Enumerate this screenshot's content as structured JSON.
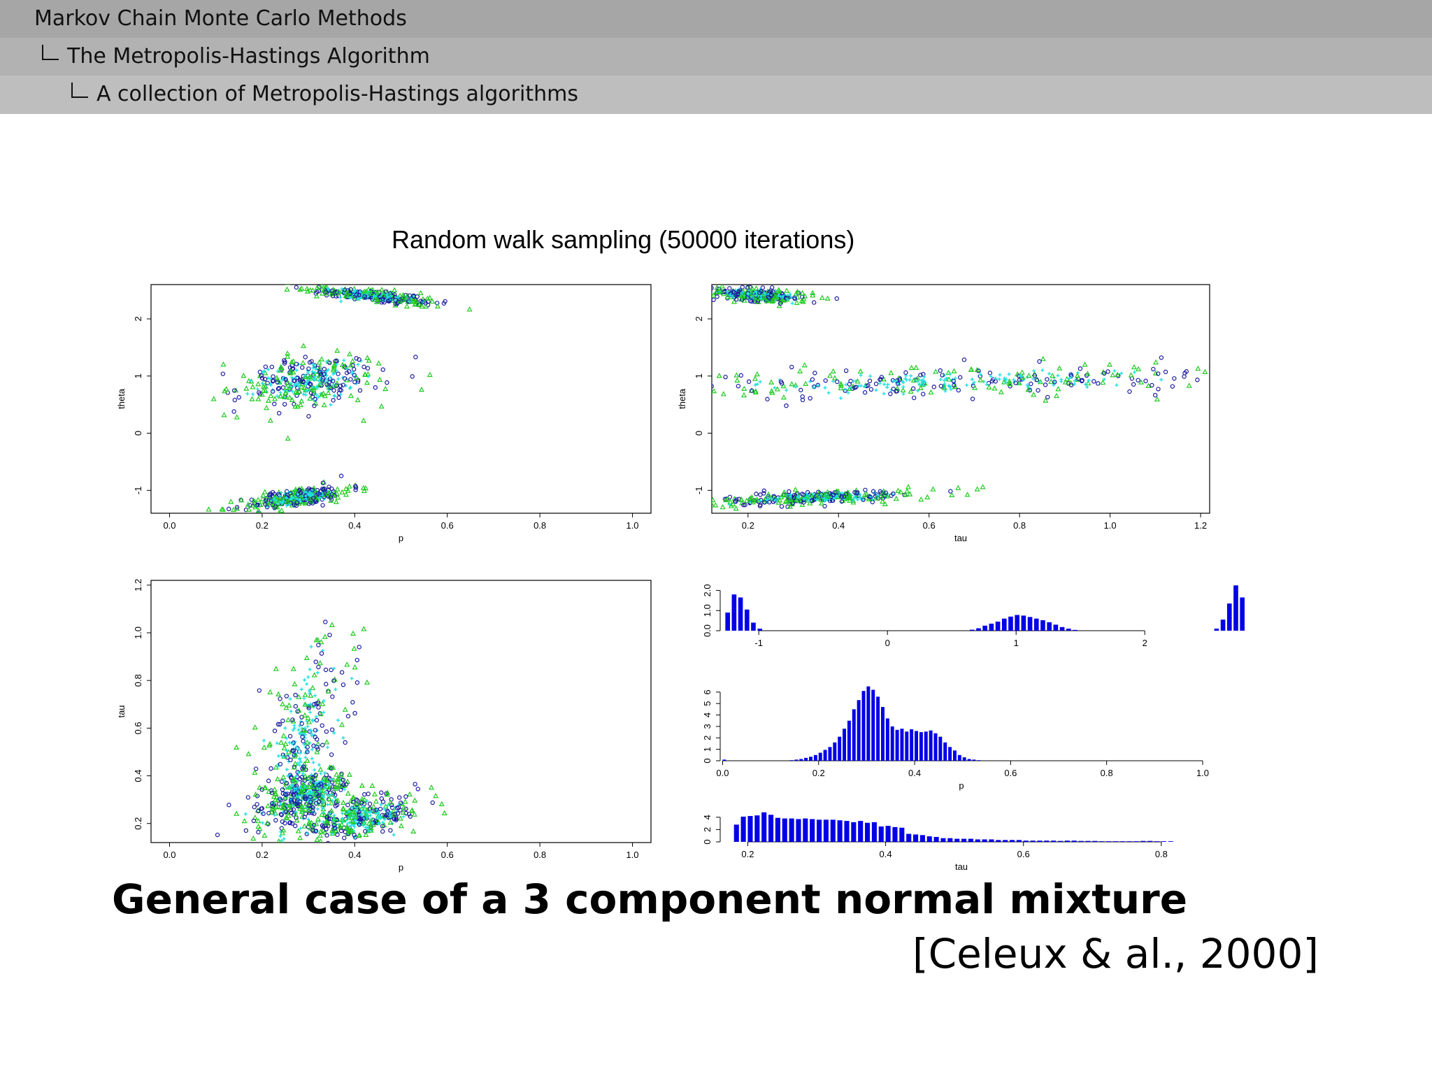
{
  "header": {
    "section": "Markov Chain Monte Carlo Methods",
    "subsection": "The Metropolis-Hastings Algorithm",
    "subsubsection": "A collection of Metropolis-Hastings algorithms"
  },
  "figure_title": "Random walk sampling (50000 iterations)",
  "headline": "General case of a 3 component normal mixture",
  "citation": "[Celeux & al., 2000]",
  "colors": {
    "marker_circle": "#1a1aa0",
    "marker_triangle": "#22cc22",
    "marker_plus": "#22e0e0",
    "hist_bar": "#0000e6"
  },
  "chart_data": [
    {
      "type": "scatter",
      "xlabel": "p",
      "ylabel": "theta",
      "xlim": [
        -0.04,
        1.04
      ],
      "ylim": [
        -1.4,
        2.6
      ],
      "xticks": [
        "0.0",
        "0.2",
        "0.4",
        "0.6",
        "0.8",
        "1.0"
      ],
      "yticks": [
        "-1",
        "0",
        "1",
        "2"
      ],
      "clusters": [
        {
          "x": 0.44,
          "y": 2.4,
          "sx": 0.06,
          "sy": 0.05,
          "slope": -0.9
        },
        {
          "x": 0.3,
          "y": 0.9,
          "sx": 0.07,
          "sy": 0.2,
          "slope": 0.6
        },
        {
          "x": 0.28,
          "y": -1.12,
          "sx": 0.05,
          "sy": 0.07,
          "slope": 1.2
        }
      ]
    },
    {
      "type": "scatter",
      "xlabel": "tau",
      "ylabel": "theta",
      "xlim": [
        0.12,
        1.22
      ],
      "ylim": [
        -1.4,
        2.6
      ],
      "xticks": [
        "0.2",
        "0.4",
        "0.6",
        "0.8",
        "1.0",
        "1.2"
      ],
      "yticks": [
        "-1",
        "0",
        "1",
        "2"
      ],
      "clusters": [
        {
          "x": 0.22,
          "y": 2.42,
          "sx": 0.05,
          "sy": 0.05,
          "slope": -0.5
        },
        {
          "x": 0.65,
          "y": 0.9,
          "sx": 0.28,
          "sy": 0.12,
          "slope": 0.2
        },
        {
          "x": 0.36,
          "y": -1.12,
          "sx": 0.1,
          "sy": 0.05,
          "slope": 0.3
        }
      ]
    },
    {
      "type": "scatter",
      "xlabel": "p",
      "ylabel": "tau",
      "xlim": [
        -0.04,
        1.04
      ],
      "ylim": [
        0.12,
        1.22
      ],
      "xticks": [
        "0.0",
        "0.2",
        "0.4",
        "0.6",
        "0.8",
        "1.0"
      ],
      "yticks": [
        "0.2",
        "0.4",
        "0.6",
        "0.8",
        "1.0",
        "1.2"
      ],
      "clusters": [
        {
          "x": 0.28,
          "y": 0.5,
          "sx": 0.05,
          "sy": 0.18,
          "slope": 2.5
        },
        {
          "x": 0.41,
          "y": 0.22,
          "sx": 0.06,
          "sy": 0.035,
          "slope": 0.3
        },
        {
          "x": 0.3,
          "y": 0.32,
          "sx": 0.04,
          "sy": 0.04,
          "slope": 0.5
        }
      ]
    },
    {
      "type": "bar",
      "xlabel": "",
      "ylabel": "",
      "xticks": [
        "-1",
        "0",
        "1",
        "2"
      ],
      "yticks": [
        "0.0",
        "1.0",
        "2.0"
      ],
      "xlim": [
        -1.3,
        2.45
      ],
      "ylim": [
        0,
        2.5
      ],
      "bin_start": -1.26,
      "bin_width": 0.05,
      "values": [
        0.9,
        1.8,
        1.65,
        1.05,
        0.4,
        0.1,
        0,
        0,
        0,
        0,
        0,
        0,
        0,
        0,
        0,
        0,
        0,
        0,
        0,
        0,
        0,
        0,
        0,
        0,
        0,
        0,
        0,
        0,
        0,
        0,
        0,
        0,
        0,
        0,
        0,
        0,
        0,
        0,
        0.05,
        0.12,
        0.25,
        0.35,
        0.45,
        0.6,
        0.7,
        0.78,
        0.75,
        0.68,
        0.6,
        0.52,
        0.42,
        0.3,
        0.18,
        0.1,
        0.04,
        0,
        0,
        0,
        0,
        0,
        0,
        0,
        0,
        0,
        0,
        0,
        0,
        0,
        0,
        0,
        0,
        0,
        0,
        0,
        0,
        0,
        0.1,
        0.55,
        1.35,
        2.25,
        1.65
      ]
    },
    {
      "type": "bar",
      "xlabel": "p",
      "ylabel": "",
      "xticks": [
        "0.0",
        "0.2",
        "0.4",
        "0.6",
        "0.8",
        "1.0"
      ],
      "yticks": [
        "0",
        "1",
        "2",
        "3",
        "4",
        "5",
        "6"
      ],
      "xlim": [
        -0.005,
        1.0
      ],
      "ylim": [
        0,
        6.6
      ],
      "bin_start": 0.0,
      "bin_width": 0.01,
      "values": [
        0.1,
        0,
        0,
        0,
        0,
        0,
        0,
        0,
        0,
        0,
        0,
        0,
        0,
        0,
        0.05,
        0.1,
        0.15,
        0.25,
        0.35,
        0.5,
        0.7,
        0.95,
        1.2,
        1.6,
        2.1,
        2.8,
        3.5,
        4.5,
        5.3,
        6.1,
        6.5,
        6.2,
        5.6,
        4.7,
        3.7,
        3.0,
        2.7,
        2.8,
        2.55,
        2.75,
        2.6,
        2.5,
        2.55,
        2.65,
        2.4,
        2.1,
        1.6,
        1.2,
        0.9,
        0.5,
        0.3,
        0.15,
        0.1,
        0.05
      ]
    },
    {
      "type": "bar",
      "xlabel": "tau",
      "ylabel": "",
      "xticks": [
        "0.2",
        "0.4",
        "0.6",
        "0.8"
      ],
      "yticks": [
        "0",
        "2",
        "4"
      ],
      "xlim": [
        0.16,
        0.86
      ],
      "ylim": [
        0,
        5
      ],
      "bin_start": 0.18,
      "bin_width": 0.01,
      "values": [
        2.8,
        4.1,
        4.2,
        4.3,
        4.8,
        4.4,
        3.9,
        3.8,
        3.8,
        3.7,
        3.8,
        3.7,
        3.6,
        3.6,
        3.6,
        3.5,
        3.4,
        3.2,
        3.4,
        3.1,
        3.2,
        2.5,
        2.6,
        2.4,
        2.3,
        1.3,
        1.2,
        1.1,
        0.9,
        0.8,
        0.6,
        0.6,
        0.5,
        0.5,
        0.5,
        0.4,
        0.4,
        0.4,
        0.3,
        0.3,
        0.3,
        0.3,
        0.2,
        0.2,
        0.2,
        0.2,
        0.2,
        0.15,
        0.2,
        0.2,
        0.15,
        0.15,
        0.15,
        0.1,
        0.1,
        0.1,
        0.1,
        0.1,
        0.1,
        0.15,
        0.15,
        0.1,
        0.1,
        0.1
      ]
    }
  ]
}
